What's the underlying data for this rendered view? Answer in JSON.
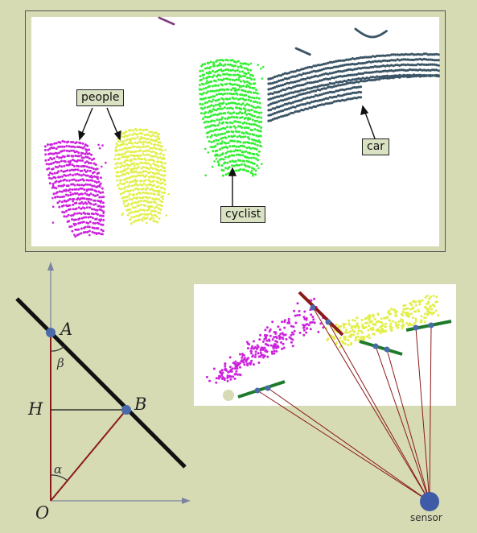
{
  "point_cloud_labels": {
    "people": "people",
    "cyclist": "cyclist",
    "car": "car"
  },
  "geometry_labels": {
    "A": "A",
    "B": "B",
    "H": "H",
    "O": "O",
    "alpha": "α",
    "beta": "β"
  },
  "sensor_label": "sensor",
  "colors": {
    "background": "#d6dbb4",
    "people_magenta": "#cc22dd",
    "people_yellow": "#e2ef4a",
    "cyclist_green": "#33ee33",
    "car_slate": "#3b5566",
    "line_black": "#111111",
    "line_red": "#8b1a1a",
    "segment_green": "#1e7a2a",
    "point_blue": "#4a6aaa",
    "axis_gray": "#7a84a0"
  }
}
